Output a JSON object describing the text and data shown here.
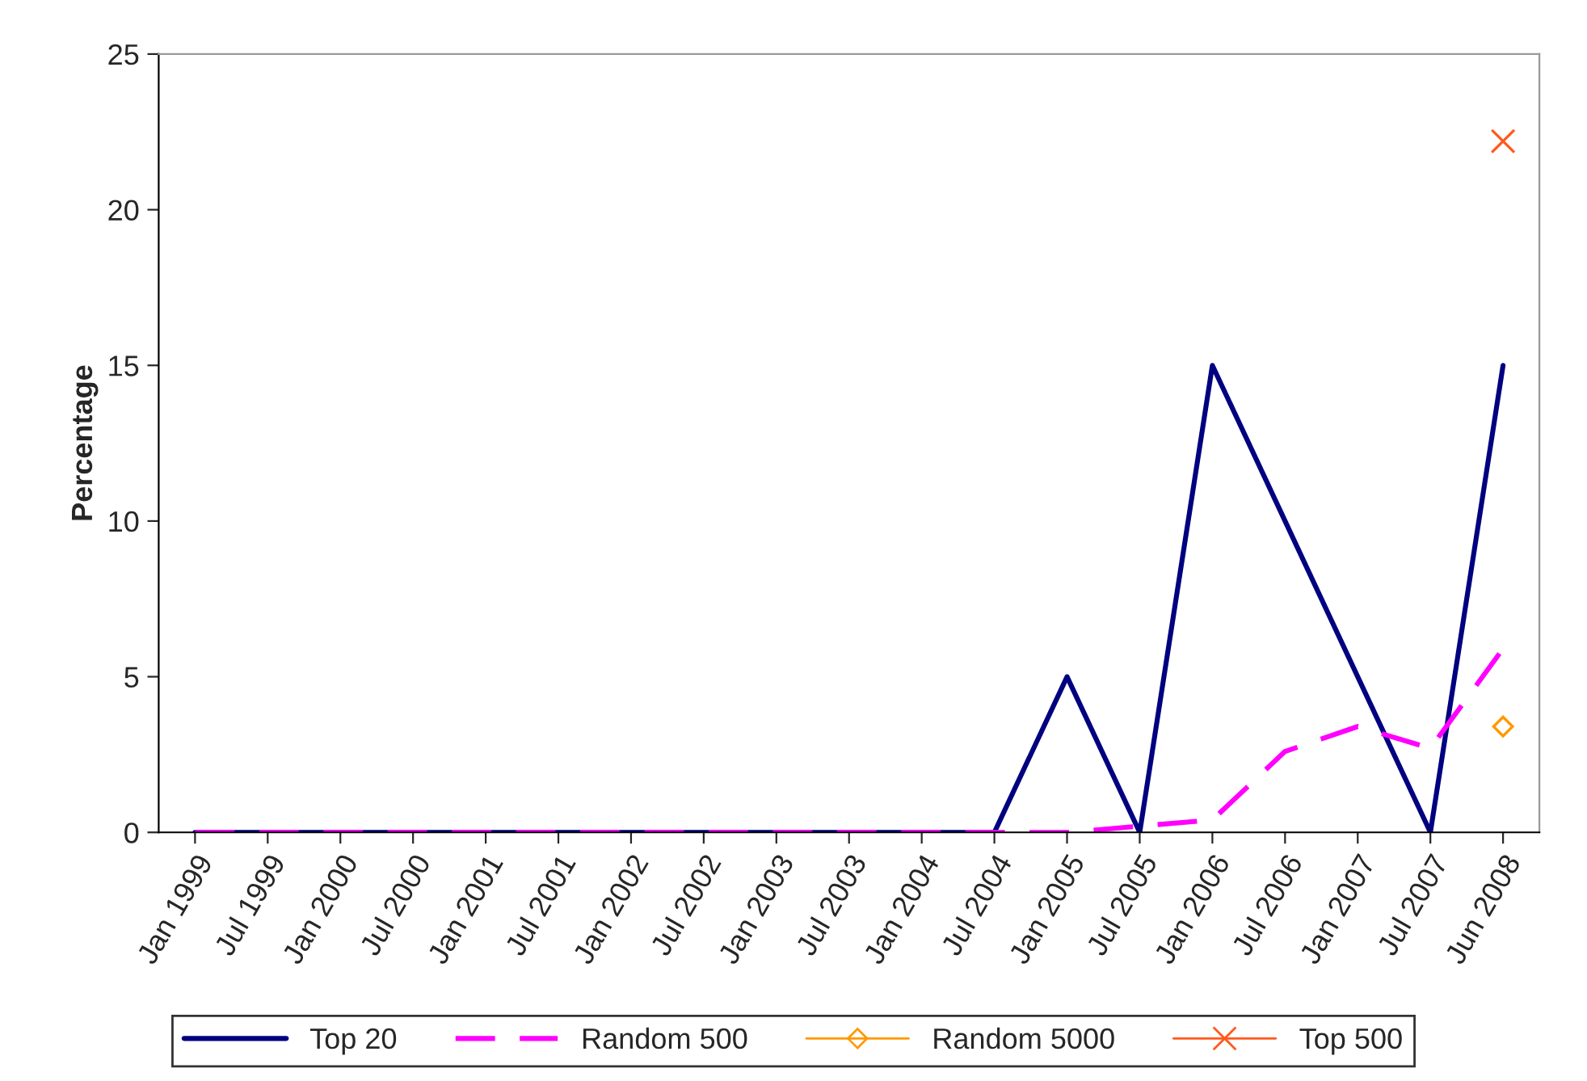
{
  "chart_data": {
    "type": "line",
    "ylabel": "Percentage",
    "categories": [
      "Jan 1999",
      "Jul 1999",
      "Jan 2000",
      "Jul 2000",
      "Jan 2001",
      "Jul 2001",
      "Jan 2002",
      "Jul 2002",
      "Jan 2003",
      "Jul 2003",
      "Jan 2004",
      "Jul 2004",
      "Jan 2005",
      "Jul 2005",
      "Jan 2006",
      "Jul 2006",
      "Jan 2007",
      "Jul 2007",
      "Jun 2008"
    ],
    "series": [
      {
        "name": "Top 20",
        "color": "#000080",
        "line_style": "solid",
        "marker": "none",
        "values": [
          0,
          0,
          0,
          0,
          0,
          0,
          0,
          0,
          0,
          0,
          0,
          0,
          5,
          0,
          15,
          10,
          5,
          0,
          15
        ]
      },
      {
        "name": "Random 500",
        "color": "#ff00ff",
        "line_style": "dashed",
        "marker": "none",
        "values": [
          0,
          0,
          0,
          0,
          0,
          0,
          0,
          0,
          0,
          0,
          0,
          0,
          0,
          0.2,
          0.4,
          2.6,
          3.4,
          2.7,
          5.9
        ]
      },
      {
        "name": "Random 5000",
        "color": "#ff9900",
        "line_style": "solid",
        "marker": "diamond",
        "values": [
          null,
          null,
          null,
          null,
          null,
          null,
          null,
          null,
          null,
          null,
          null,
          null,
          null,
          null,
          null,
          null,
          null,
          null,
          3.4
        ]
      },
      {
        "name": "Top 500",
        "color": "#ff5a1e",
        "line_style": "solid",
        "marker": "cross",
        "values": [
          null,
          null,
          null,
          null,
          null,
          null,
          null,
          null,
          null,
          null,
          null,
          null,
          null,
          null,
          null,
          null,
          null,
          null,
          22.2
        ]
      }
    ],
    "ylim": [
      0,
      25
    ],
    "yticks": [
      0,
      5,
      10,
      15,
      20,
      25
    ],
    "grid": false,
    "legend": "bottom"
  }
}
